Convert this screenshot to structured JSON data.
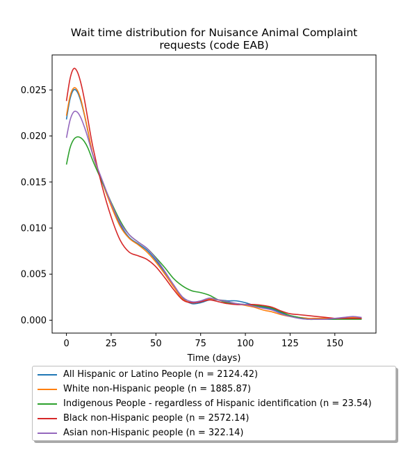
{
  "chart_data": {
    "type": "line",
    "title": "Wait time distribution  for Nuisance Animal Complaint requests (code EAB)",
    "title_lines": [
      "Wait time distribution  for Nuisance Animal Complaint",
      "requests (code EAB)"
    ],
    "xlabel": "Time (days)",
    "ylabel": "",
    "xlim": [
      -8,
      173
    ],
    "ylim": [
      -0.0014,
      0.0288
    ],
    "xticks": [
      0,
      25,
      50,
      75,
      100,
      125,
      150
    ],
    "xtick_labels": [
      "0",
      "25",
      "50",
      "75",
      "100",
      "125",
      "150"
    ],
    "yticks": [
      0.0,
      0.005,
      0.01,
      0.015,
      0.02,
      0.025
    ],
    "ytick_labels": [
      "0.000",
      "0.005",
      "0.010",
      "0.015",
      "0.020",
      "0.025"
    ],
    "grid": false,
    "legend_position": "below",
    "x": [
      0,
      2,
      4,
      6,
      8,
      10,
      12,
      15,
      20,
      25,
      30,
      35,
      40,
      45,
      50,
      55,
      60,
      65,
      70,
      75,
      80,
      85,
      90,
      95,
      100,
      105,
      110,
      115,
      120,
      125,
      130,
      135,
      140,
      145,
      150,
      155,
      160,
      165
    ],
    "series": [
      {
        "name": "All Hispanic or Latino People (n = 2124.42)",
        "color": "#1f77b4",
        "values": [
          0.0218,
          0.024,
          0.025,
          0.0248,
          0.0238,
          0.0223,
          0.0205,
          0.0178,
          0.015,
          0.0125,
          0.0104,
          0.009,
          0.0083,
          0.0076,
          0.0065,
          0.0052,
          0.0038,
          0.0024,
          0.0018,
          0.0019,
          0.0022,
          0.0022,
          0.0021,
          0.0021,
          0.0019,
          0.0016,
          0.0014,
          0.0012,
          0.0008,
          0.0005,
          0.0003,
          0.0002,
          0.0001,
          0.0001,
          0.0001,
          0.0002,
          0.0003,
          0.0002
        ]
      },
      {
        "name": "White non-Hispanic people (n = 1885.87)",
        "color": "#ff7f0e",
        "values": [
          0.0222,
          0.0243,
          0.0252,
          0.025,
          0.024,
          0.0224,
          0.0206,
          0.0178,
          0.015,
          0.0124,
          0.0102,
          0.0089,
          0.0082,
          0.0074,
          0.0063,
          0.005,
          0.0036,
          0.0023,
          0.0019,
          0.002,
          0.0023,
          0.0022,
          0.002,
          0.0018,
          0.0016,
          0.0014,
          0.0011,
          0.0009,
          0.0006,
          0.0004,
          0.0003,
          0.0002,
          0.0002,
          0.0002,
          0.0002,
          0.0002,
          0.0003,
          0.0002
        ]
      },
      {
        "name": "Indigenous People - regardless of Hispanic identification (n = 23.54)",
        "color": "#2ca02c",
        "values": [
          0.0169,
          0.0187,
          0.0196,
          0.0199,
          0.0198,
          0.0194,
          0.0187,
          0.0172,
          0.015,
          0.0128,
          0.0108,
          0.0093,
          0.0085,
          0.0078,
          0.0068,
          0.0057,
          0.0045,
          0.0037,
          0.0032,
          0.003,
          0.0027,
          0.0022,
          0.0019,
          0.0018,
          0.0017,
          0.0016,
          0.0015,
          0.0013,
          0.0009,
          0.0005,
          0.0003,
          0.0001,
          0.0001,
          0.0001,
          0.0001,
          0.0001,
          0.0001,
          0.0001
        ]
      },
      {
        "name": "Black non-Hispanic people (n = 2572.14)",
        "color": "#d62728",
        "values": [
          0.0238,
          0.0262,
          0.0273,
          0.027,
          0.0258,
          0.024,
          0.0218,
          0.0186,
          0.0145,
          0.0112,
          0.0087,
          0.0074,
          0.007,
          0.0066,
          0.0058,
          0.0046,
          0.0033,
          0.0022,
          0.0019,
          0.002,
          0.0022,
          0.002,
          0.0018,
          0.0017,
          0.0017,
          0.0017,
          0.0016,
          0.0014,
          0.001,
          0.0007,
          0.0006,
          0.0005,
          0.0004,
          0.0003,
          0.0002,
          0.0002,
          0.0002,
          0.0002
        ]
      },
      {
        "name": "Asian non-Hispanic people (n = 322.14)",
        "color": "#9467bd",
        "values": [
          0.0198,
          0.0217,
          0.0226,
          0.0226,
          0.022,
          0.021,
          0.0198,
          0.0178,
          0.0152,
          0.0127,
          0.0106,
          0.0093,
          0.0085,
          0.0078,
          0.0067,
          0.0053,
          0.0038,
          0.0025,
          0.002,
          0.0021,
          0.0024,
          0.0022,
          0.002,
          0.0018,
          0.0017,
          0.0015,
          0.0013,
          0.0011,
          0.0007,
          0.0004,
          0.0002,
          0.0001,
          0.0001,
          0.0001,
          0.0002,
          0.0003,
          0.0004,
          0.0003
        ]
      }
    ]
  }
}
